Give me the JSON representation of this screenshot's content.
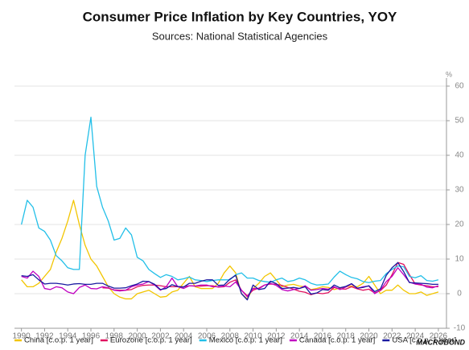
{
  "chart_data": {
    "type": "line",
    "title": "Consumer Price Inflation by Key Countries, YOY",
    "subtitle": "Sources: National Statistical Agencies",
    "y_label": "%",
    "source_logo": "MACROBOND",
    "x": [
      1990,
      1990.5,
      1991,
      1991.5,
      1992,
      1992.5,
      1993,
      1993.5,
      1994,
      1994.5,
      1995,
      1995.5,
      1996,
      1996.5,
      1997,
      1997.5,
      1998,
      1998.5,
      1999,
      1999.5,
      2000,
      2000.5,
      2001,
      2001.5,
      2002,
      2002.5,
      2003,
      2003.5,
      2004,
      2004.5,
      2005,
      2005.5,
      2006,
      2006.5,
      2007,
      2007.5,
      2008,
      2008.5,
      2009,
      2009.5,
      2010,
      2010.5,
      2011,
      2011.5,
      2012,
      2012.5,
      2013,
      2013.5,
      2014,
      2014.5,
      2015,
      2015.5,
      2016,
      2016.5,
      2017,
      2017.5,
      2018,
      2018.5,
      2019,
      2019.5,
      2020,
      2020.5,
      2021,
      2021.5,
      2022,
      2022.5,
      2023,
      2023.5,
      2024,
      2024.5,
      2025,
      2025.5,
      2026
    ],
    "series": [
      {
        "name": "China [c.o.p. 1 year]",
        "color": "#f2c500",
        "values": [
          4,
          2,
          2,
          3,
          5,
          7,
          12,
          16,
          21,
          27,
          20,
          14,
          10,
          8,
          5,
          2,
          0,
          -1,
          -1.5,
          -1.5,
          0,
          0.5,
          1,
          0,
          -1,
          -0.8,
          0.5,
          1,
          3,
          5,
          2,
          1.5,
          1.5,
          1.5,
          3,
          6,
          8,
          6,
          0,
          -1.5,
          1.5,
          3,
          5,
          6,
          4,
          2,
          2.5,
          2.7,
          2.2,
          2,
          1.2,
          1.5,
          2,
          1.8,
          1.2,
          1.6,
          2,
          2.2,
          2,
          3,
          5,
          2.5,
          0,
          1,
          1,
          2.5,
          1,
          0,
          0,
          0.5,
          -0.5,
          0,
          0.5
        ]
      },
      {
        "name": "Eurozone [c.o.p. 1 year]",
        "color": "#e0115f",
        "values": [
          null,
          null,
          null,
          null,
          null,
          null,
          null,
          null,
          null,
          null,
          null,
          null,
          null,
          null,
          1.7,
          1.6,
          1.1,
          1,
          1,
          1.2,
          2,
          2.4,
          2.5,
          2.5,
          2.3,
          2,
          2,
          2,
          2,
          2.3,
          2.2,
          2.2,
          2.3,
          2.3,
          1.9,
          2,
          3.3,
          4,
          1,
          -0.6,
          1,
          1.6,
          2.5,
          2.8,
          2.7,
          2.4,
          1.8,
          1.3,
          0.7,
          0.4,
          -0.3,
          0.2,
          0,
          0.3,
          1.8,
          1.4,
          1.3,
          2,
          1.4,
          1,
          1.3,
          0.2,
          0.9,
          2.5,
          5.5,
          9,
          8.5,
          5.5,
          2.8,
          2.5,
          2.3,
          2,
          2
        ]
      },
      {
        "name": "Mexico [c.o.p. 1 year]",
        "color": "#22bfe8",
        "values": [
          20,
          27,
          25,
          19,
          18,
          15.5,
          11,
          9.5,
          7.5,
          7,
          7,
          40,
          51,
          31,
          25,
          21,
          15.5,
          16,
          19,
          17,
          10.5,
          9.5,
          7,
          5.8,
          4.7,
          5.5,
          5,
          4,
          4.3,
          4.8,
          4,
          3.8,
          3.5,
          3.8,
          4,
          4,
          4,
          5.5,
          6,
          4.5,
          4.5,
          3.8,
          3.5,
          3.3,
          4,
          4.5,
          3.5,
          3.8,
          4.5,
          4,
          3,
          2.5,
          2.6,
          2.8,
          4.8,
          6.5,
          5.5,
          4.7,
          4.3,
          3.5,
          3.2,
          3.6,
          3.8,
          5.8,
          7,
          8,
          7.8,
          5,
          4.6,
          5.2,
          3.8,
          3.6,
          4
        ]
      },
      {
        "name": "Canada [c.o.p. 1 year]",
        "color": "#c000c0",
        "values": [
          5,
          4.5,
          6.5,
          5,
          1.5,
          1.2,
          2,
          1.7,
          0.5,
          0,
          1.8,
          2.5,
          1.5,
          1.4,
          2,
          1.7,
          1,
          0.8,
          1,
          2,
          2.5,
          2.8,
          3.5,
          2.5,
          1,
          2,
          4.5,
          2,
          1.5,
          2.3,
          2.2,
          2.5,
          2.5,
          2,
          2,
          2.2,
          2,
          3.4,
          1,
          -0.9,
          1.5,
          1.4,
          2.5,
          3,
          2.4,
          1.2,
          0.8,
          1.2,
          1.5,
          2.3,
          1,
          1.2,
          1.5,
          1.3,
          2,
          1.2,
          1.9,
          2.8,
          1.5,
          2,
          2.2,
          0,
          1,
          3.5,
          5,
          7.5,
          5.5,
          3.3,
          2.8,
          2.7,
          1.9,
          1.7,
          2.3
        ]
      },
      {
        "name": "USA [c.o.p. 1 year]",
        "color": "#1a1aa0",
        "values": [
          5.2,
          5,
          5.5,
          4,
          2.8,
          3,
          3,
          2.8,
          2.5,
          2.8,
          2.9,
          2.7,
          2.7,
          3,
          3,
          2.2,
          1.6,
          1.6,
          1.7,
          2.3,
          2.8,
          3.6,
          3.5,
          2.7,
          1.2,
          1.5,
          2.6,
          2.1,
          1.9,
          3,
          3,
          3.6,
          4,
          4,
          2.4,
          2.5,
          4.2,
          5.3,
          0,
          -1.8,
          2.5,
          1.2,
          1.5,
          3.6,
          2.9,
          1.5,
          1.6,
          1.8,
          1.5,
          2,
          -0.1,
          0.2,
          1.2,
          1,
          2.5,
          1.7,
          2.1,
          2.9,
          1.6,
          1.8,
          2.3,
          0.6,
          1.4,
          5.3,
          7.5,
          9,
          6.4,
          3.2,
          3.1,
          3,
          2.9,
          2.7,
          2.7
        ]
      }
    ],
    "xlim": [
      1989.4,
      2026.7
    ],
    "xticks": [
      1990,
      1992,
      1994,
      1996,
      1998,
      2000,
      2002,
      2004,
      2006,
      2008,
      2010,
      2012,
      2014,
      2016,
      2018,
      2020,
      2022,
      2024,
      2026
    ],
    "ylim": [
      -10,
      60
    ],
    "yticks": [
      -10,
      0,
      10,
      20,
      30,
      40,
      50,
      60
    ],
    "grid": true
  }
}
